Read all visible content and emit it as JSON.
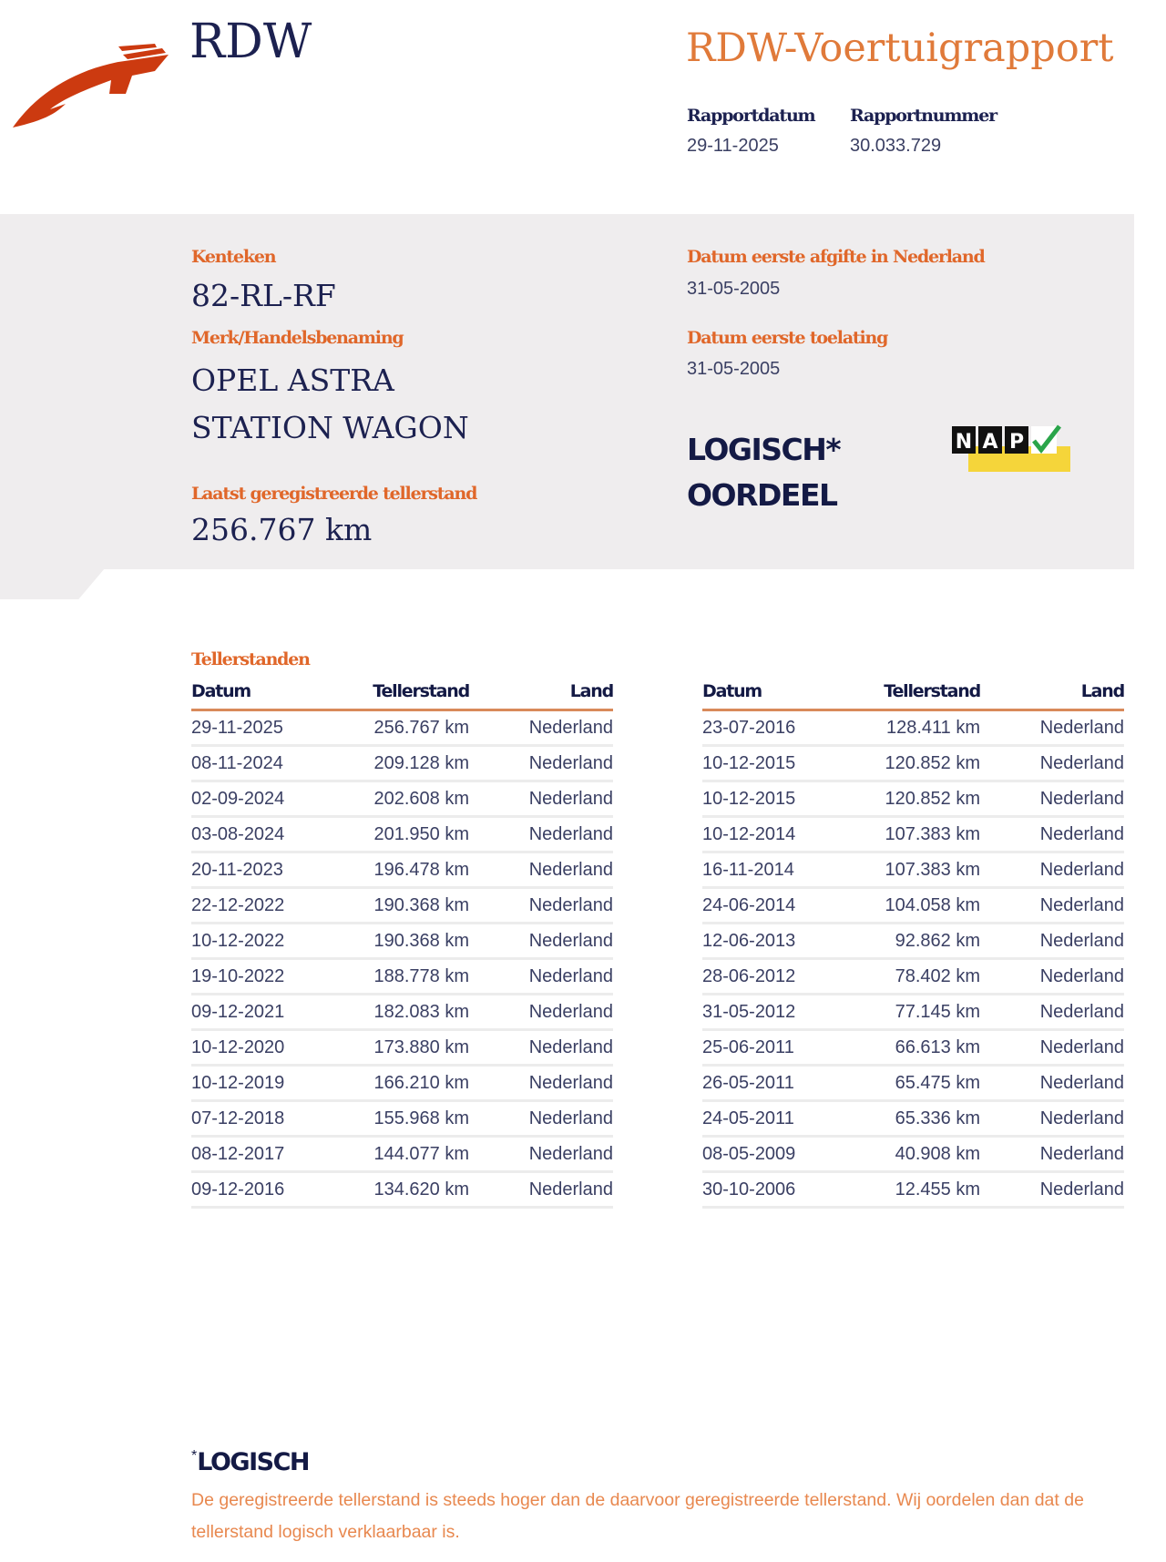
{
  "header": {
    "logo_text": "RDW",
    "title": "RDW-Voertuigrapport",
    "report_date_label": "Rapportdatum",
    "report_date": "29-11-2025",
    "report_number_label": "Rapportnummer",
    "report_number": "30.033.729"
  },
  "vehicle": {
    "plate_label": "Kenteken",
    "plate": "82-RL-RF",
    "brand_label": "Merk/Handelsbenaming",
    "brand_line1": "OPEL ASTRA",
    "brand_line2": "STATION WAGON",
    "odometer_label": "Laatst geregistreerde tellerstand",
    "odometer": "256.767 km",
    "first_issue_nl_label": "Datum eerste afgifte in Nederland",
    "first_issue_nl": "31-05-2005",
    "first_admission_label": "Datum eerste toelating",
    "first_admission": "31-05-2005",
    "verdict_line1": "LOGISCH*",
    "verdict_line2": "OORDEEL",
    "nap_logo": "NAP",
    "colors": {
      "accent": "#e0672a",
      "navy": "#1c2150",
      "band": "#efedee",
      "nap_yellow": "#f5d53a",
      "nap_check": "#2aa54a"
    }
  },
  "readings": {
    "title": "Tellerstanden",
    "columns": [
      "Datum",
      "Tellerstand",
      "Land"
    ],
    "left": [
      [
        "29-11-2025",
        "256.767 km",
        "Nederland"
      ],
      [
        "08-11-2024",
        "209.128 km",
        "Nederland"
      ],
      [
        "02-09-2024",
        "202.608 km",
        "Nederland"
      ],
      [
        "03-08-2024",
        "201.950 km",
        "Nederland"
      ],
      [
        "20-11-2023",
        "196.478 km",
        "Nederland"
      ],
      [
        "22-12-2022",
        "190.368 km",
        "Nederland"
      ],
      [
        "10-12-2022",
        "190.368 km",
        "Nederland"
      ],
      [
        "19-10-2022",
        "188.778 km",
        "Nederland"
      ],
      [
        "09-12-2021",
        "182.083 km",
        "Nederland"
      ],
      [
        "10-12-2020",
        "173.880 km",
        "Nederland"
      ],
      [
        "10-12-2019",
        "166.210 km",
        "Nederland"
      ],
      [
        "07-12-2018",
        "155.968 km",
        "Nederland"
      ],
      [
        "08-12-2017",
        "144.077 km",
        "Nederland"
      ],
      [
        "09-12-2016",
        "134.620 km",
        "Nederland"
      ]
    ],
    "right": [
      [
        "23-07-2016",
        "128.411 km",
        "Nederland"
      ],
      [
        "10-12-2015",
        "120.852 km",
        "Nederland"
      ],
      [
        "10-12-2015",
        "120.852 km",
        "Nederland"
      ],
      [
        "10-12-2014",
        "107.383 km",
        "Nederland"
      ],
      [
        "16-11-2014",
        "107.383 km",
        "Nederland"
      ],
      [
        "24-06-2014",
        "104.058 km",
        "Nederland"
      ],
      [
        "12-06-2013",
        "92.862 km",
        "Nederland"
      ],
      [
        "28-06-2012",
        "78.402 km",
        "Nederland"
      ],
      [
        "31-05-2012",
        "77.145 km",
        "Nederland"
      ],
      [
        "25-06-2011",
        "66.613 km",
        "Nederland"
      ],
      [
        "26-05-2011",
        "65.475 km",
        "Nederland"
      ],
      [
        "24-05-2011",
        "65.336 km",
        "Nederland"
      ],
      [
        "08-05-2009",
        "40.908 km",
        "Nederland"
      ],
      [
        "30-10-2006",
        "12.455 km",
        "Nederland"
      ]
    ]
  },
  "footnote": {
    "marker": "*",
    "title": "LOGISCH",
    "text": "De geregistreerde tellerstand is steeds hoger dan de daarvoor geregistreerde tellerstand. Wij oordelen dan dat de tellerstand logisch verklaarbaar is."
  }
}
